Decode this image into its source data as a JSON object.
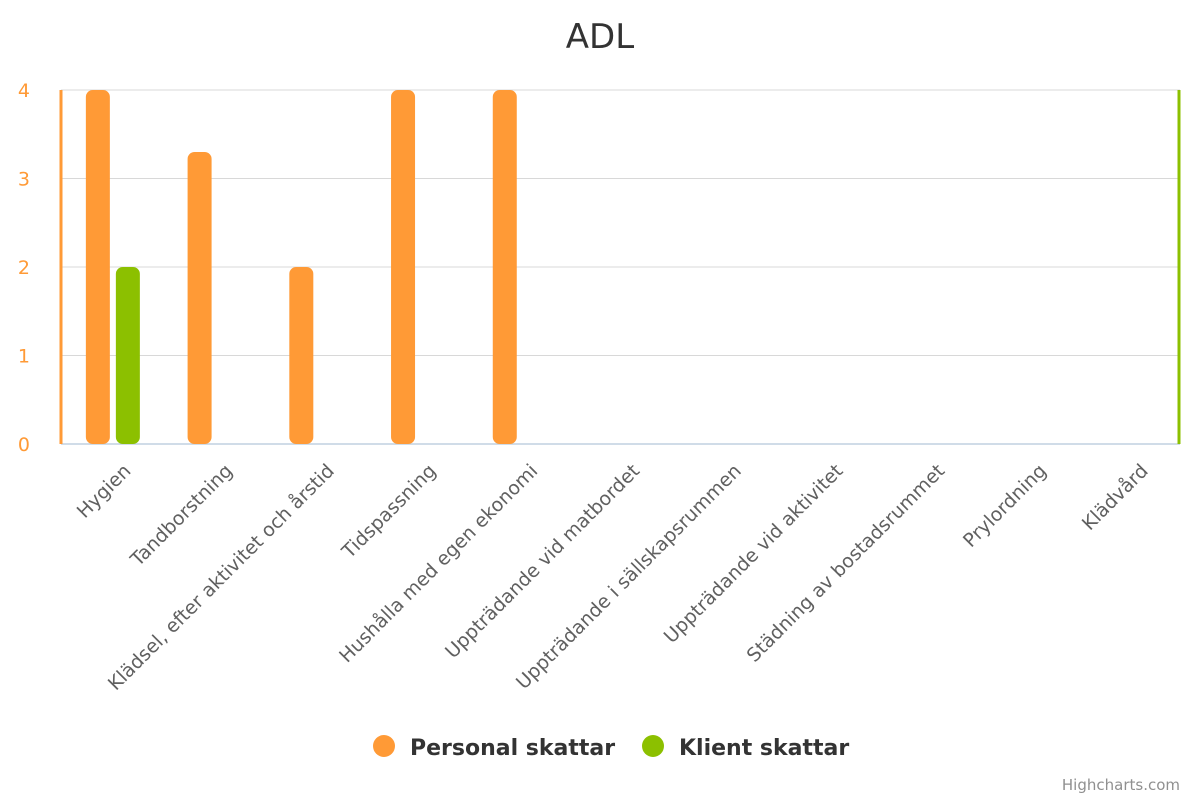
{
  "chart_data": {
    "type": "bar",
    "title": "ADL",
    "categories": [
      "Hygien",
      "Tandborstning",
      "Klädsel, efter aktivitet och årstid",
      "Tidspassning",
      "Hushålla med egen ekonomi",
      "Uppträdande vid matbordet",
      "Uppträdande i sällskapsrummen",
      "Uppträdande vid aktivitet",
      "Städning av bostadsrummet",
      "Prylordning",
      "Klädvård"
    ],
    "series": [
      {
        "name": "Personal skattar",
        "color": "#FF9A36",
        "values": [
          4,
          3.3,
          2,
          4,
          4,
          null,
          null,
          null,
          null,
          null,
          null
        ]
      },
      {
        "name": "Klient skattar",
        "color": "#8CC000",
        "values": [
          2,
          null,
          null,
          null,
          null,
          null,
          null,
          null,
          null,
          null,
          null
        ]
      }
    ],
    "ylim": [
      0,
      4
    ],
    "yticks": [
      0,
      1,
      2,
      3,
      4
    ],
    "grid": true,
    "legend": "bottom-center",
    "credits": "Highcharts.com"
  }
}
